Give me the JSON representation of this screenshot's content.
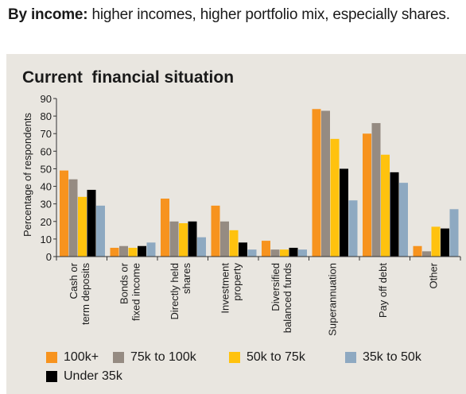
{
  "heading": {
    "bold": "By income:",
    "rest": " higher incomes, higher portfolio mix, especially shares."
  },
  "chart_data": {
    "type": "bar",
    "title": "Current  financial situation",
    "ylabel": "Percentage of respondents",
    "xlabel": "",
    "ylim": [
      0,
      90
    ],
    "yticks": [
      0,
      10,
      20,
      30,
      40,
      50,
      60,
      70,
      80,
      90
    ],
    "categories": [
      [
        "Cash or",
        "term deposits"
      ],
      [
        "Bonds or",
        "fixed income"
      ],
      [
        "Directly held",
        "shares"
      ],
      [
        "Investment",
        "property"
      ],
      [
        "Diversified",
        "balanced funds"
      ],
      [
        "Superannuation"
      ],
      [
        "Pay off debt"
      ],
      [
        "Other"
      ]
    ],
    "series": [
      {
        "name": "100k+",
        "color": "#f7931e",
        "values": [
          49,
          5,
          33,
          29,
          9,
          84,
          70,
          6
        ]
      },
      {
        "name": "75k to 100k",
        "color": "#958b82",
        "values": [
          44,
          6,
          20,
          20,
          4,
          83,
          76,
          3
        ]
      },
      {
        "name": "50k to 75k",
        "color": "#ffc20e",
        "values": [
          34,
          5,
          19,
          15,
          4,
          67,
          58,
          17
        ]
      },
      {
        "name": "Under 35k",
        "color": "#000000",
        "values": [
          38,
          6,
          20,
          8,
          5,
          50,
          48,
          16
        ]
      },
      {
        "name": "35k to 50k",
        "color": "#8ea9c1",
        "values": [
          29,
          8,
          11,
          4,
          4,
          32,
          42,
          27
        ]
      }
    ],
    "legend_order": [
      "100k+",
      "75k to 100k",
      "50k to 75k",
      "35k to 50k",
      "Under 35k"
    ],
    "legend_position": "bottom",
    "grid": false
  }
}
